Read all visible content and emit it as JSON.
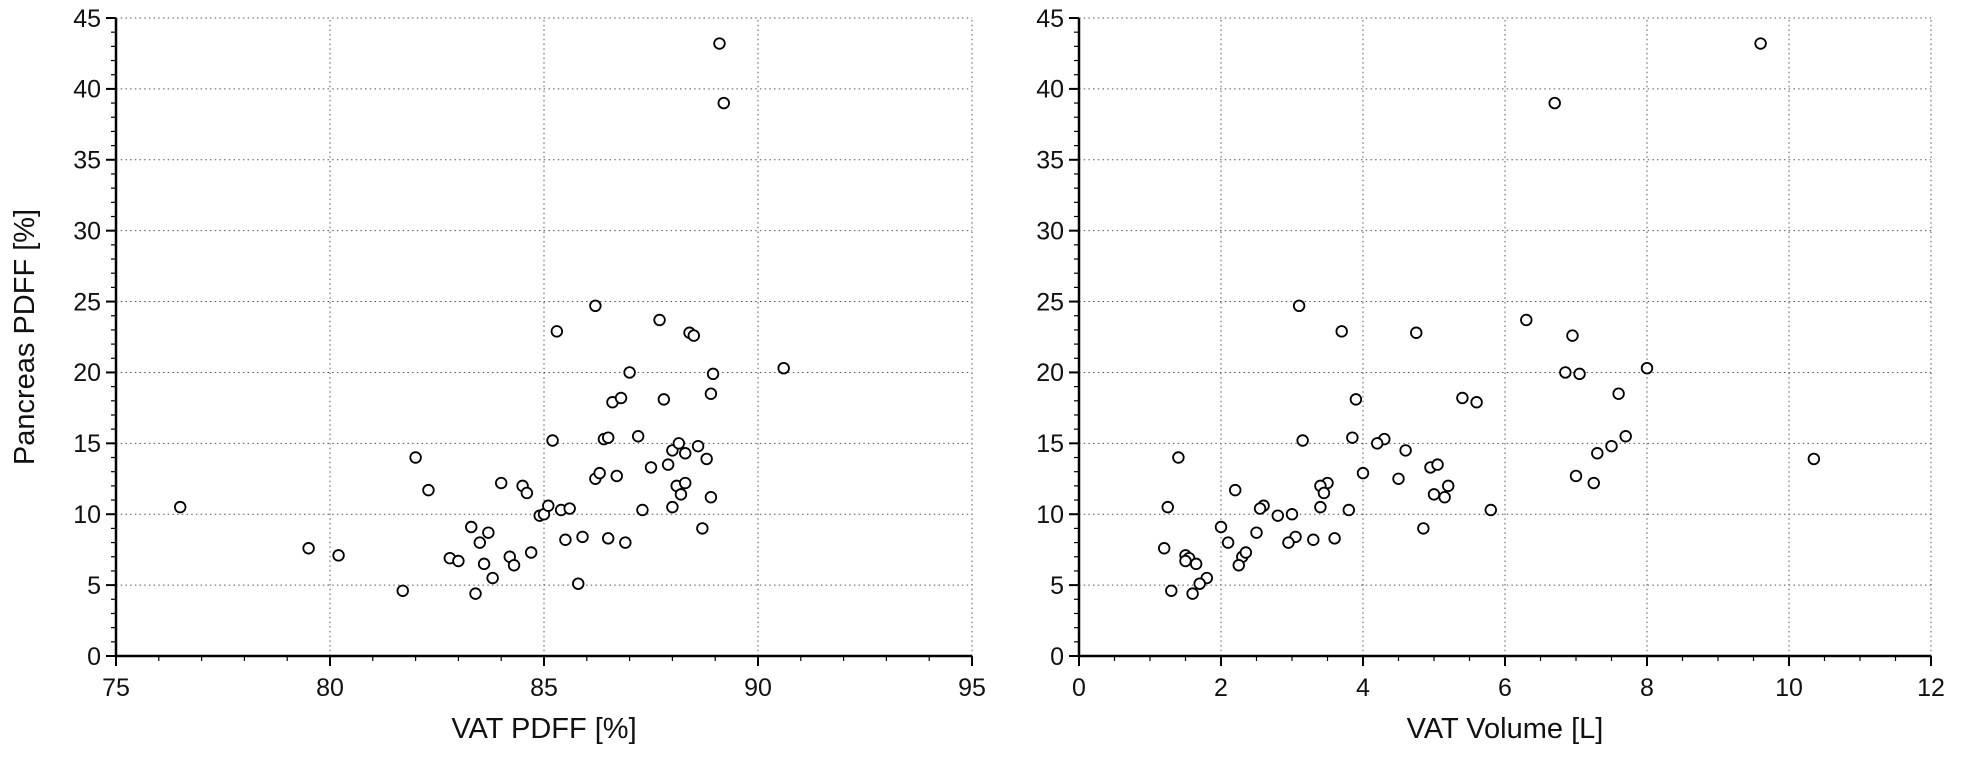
{
  "figure": {
    "background": "#ffffff",
    "axis_color": "#000000",
    "grid_color": "#555555",
    "text_color": "#111111",
    "marker": {
      "shape": "open-circle",
      "fill": "#ffffff",
      "stroke": "#000000",
      "radius": 5.3,
      "stroke_width": 1.8
    }
  },
  "chart_data": [
    {
      "type": "scatter",
      "title": "",
      "xlabel": "VAT PDFF [%]",
      "ylabel": "Pancreas PDFF [%]",
      "xlim": [
        75,
        95
      ],
      "ylim": [
        0,
        45
      ],
      "xticks": [
        75,
        80,
        85,
        90,
        95
      ],
      "yticks": [
        0,
        5,
        10,
        15,
        20,
        25,
        30,
        35,
        40,
        45
      ],
      "x_minor_step": 1,
      "y_minor_step": 1,
      "grid": "dotted",
      "legend": "none",
      "points": [
        [
          76.5,
          10.5
        ],
        [
          79.5,
          7.6
        ],
        [
          80.2,
          7.1
        ],
        [
          81.7,
          4.6
        ],
        [
          82.0,
          14.0
        ],
        [
          82.3,
          11.7
        ],
        [
          82.8,
          6.9
        ],
        [
          83.0,
          6.7
        ],
        [
          83.3,
          9.1
        ],
        [
          83.4,
          4.4
        ],
        [
          83.5,
          8.0
        ],
        [
          83.6,
          6.5
        ],
        [
          83.7,
          8.7
        ],
        [
          83.8,
          5.5
        ],
        [
          84.0,
          12.2
        ],
        [
          84.2,
          7.0
        ],
        [
          84.3,
          6.4
        ],
        [
          84.5,
          12.0
        ],
        [
          84.6,
          11.5
        ],
        [
          84.7,
          7.3
        ],
        [
          84.9,
          9.9
        ],
        [
          85.0,
          10.0
        ],
        [
          85.1,
          10.6
        ],
        [
          85.2,
          15.2
        ],
        [
          85.3,
          22.9
        ],
        [
          85.4,
          10.3
        ],
        [
          85.5,
          8.2
        ],
        [
          85.6,
          10.4
        ],
        [
          85.8,
          5.1
        ],
        [
          85.9,
          8.4
        ],
        [
          86.2,
          24.7
        ],
        [
          86.2,
          12.5
        ],
        [
          86.3,
          12.9
        ],
        [
          86.4,
          15.3
        ],
        [
          86.5,
          15.4
        ],
        [
          86.5,
          8.3
        ],
        [
          86.6,
          17.9
        ],
        [
          86.7,
          12.7
        ],
        [
          86.8,
          18.2
        ],
        [
          86.9,
          8.0
        ],
        [
          87.0,
          20.0
        ],
        [
          87.2,
          15.5
        ],
        [
          87.3,
          10.3
        ],
        [
          87.5,
          13.3
        ],
        [
          87.7,
          23.7
        ],
        [
          87.8,
          18.1
        ],
        [
          87.9,
          13.5
        ],
        [
          88.0,
          14.5
        ],
        [
          88.0,
          10.5
        ],
        [
          88.1,
          12.0
        ],
        [
          88.15,
          15.0
        ],
        [
          88.2,
          11.4
        ],
        [
          88.3,
          12.2
        ],
        [
          88.3,
          14.3
        ],
        [
          88.4,
          22.8
        ],
        [
          88.5,
          22.6
        ],
        [
          88.6,
          14.8
        ],
        [
          88.7,
          9.0
        ],
        [
          88.8,
          13.9
        ],
        [
          88.9,
          11.2
        ],
        [
          88.9,
          18.5
        ],
        [
          88.95,
          19.9
        ],
        [
          89.1,
          43.2
        ],
        [
          89.2,
          39.0
        ],
        [
          90.6,
          20.3
        ]
      ]
    },
    {
      "type": "scatter",
      "title": "",
      "xlabel": "VAT Volume [L]",
      "ylabel": "",
      "xlim": [
        0,
        12
      ],
      "ylim": [
        0,
        45
      ],
      "xticks": [
        0,
        2,
        4,
        6,
        8,
        10,
        12
      ],
      "yticks": [
        0,
        5,
        10,
        15,
        20,
        25,
        30,
        35,
        40,
        45
      ],
      "x_minor_step": 0.5,
      "y_minor_step": 1,
      "grid": "dotted",
      "legend": "none",
      "points": [
        [
          1.25,
          10.5
        ],
        [
          1.2,
          7.6
        ],
        [
          1.5,
          7.1
        ],
        [
          1.3,
          4.6
        ],
        [
          1.4,
          14.0
        ],
        [
          2.2,
          11.7
        ],
        [
          1.55,
          6.9
        ],
        [
          1.5,
          6.7
        ],
        [
          2.0,
          9.1
        ],
        [
          1.6,
          4.4
        ],
        [
          2.1,
          8.0
        ],
        [
          1.65,
          6.5
        ],
        [
          2.5,
          8.7
        ],
        [
          1.8,
          5.5
        ],
        [
          3.5,
          12.2
        ],
        [
          2.3,
          7.0
        ],
        [
          2.25,
          6.4
        ],
        [
          3.4,
          12.0
        ],
        [
          3.45,
          11.5
        ],
        [
          2.35,
          7.3
        ],
        [
          2.8,
          9.9
        ],
        [
          3.0,
          10.0
        ],
        [
          2.6,
          10.6
        ],
        [
          3.15,
          15.2
        ],
        [
          3.7,
          22.9
        ],
        [
          3.8,
          10.3
        ],
        [
          3.3,
          8.2
        ],
        [
          2.55,
          10.4
        ],
        [
          1.7,
          5.1
        ],
        [
          3.05,
          8.4
        ],
        [
          3.1,
          24.7
        ],
        [
          4.5,
          12.5
        ],
        [
          4.0,
          12.9
        ],
        [
          4.3,
          15.3
        ],
        [
          3.85,
          15.4
        ],
        [
          3.6,
          8.3
        ],
        [
          5.6,
          17.9
        ],
        [
          7.0,
          12.7
        ],
        [
          5.4,
          18.2
        ],
        [
          2.95,
          8.0
        ],
        [
          6.85,
          20.0
        ],
        [
          7.7,
          15.5
        ],
        [
          5.8,
          10.3
        ],
        [
          4.95,
          13.3
        ],
        [
          6.3,
          23.7
        ],
        [
          3.9,
          18.1
        ],
        [
          5.05,
          13.5
        ],
        [
          4.6,
          14.5
        ],
        [
          3.4,
          10.5
        ],
        [
          5.2,
          12.0
        ],
        [
          4.2,
          15.0
        ],
        [
          5.0,
          11.4
        ],
        [
          7.25,
          12.2
        ],
        [
          7.3,
          14.3
        ],
        [
          4.75,
          22.8
        ],
        [
          6.95,
          22.6
        ],
        [
          7.5,
          14.8
        ],
        [
          4.85,
          9.0
        ],
        [
          10.35,
          13.9
        ],
        [
          5.15,
          11.2
        ],
        [
          7.6,
          18.5
        ],
        [
          7.05,
          19.9
        ],
        [
          9.6,
          43.2
        ],
        [
          6.7,
          39.0
        ],
        [
          8.0,
          20.3
        ]
      ]
    }
  ]
}
